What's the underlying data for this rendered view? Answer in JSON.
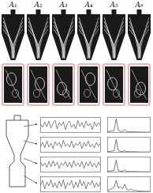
{
  "panels": {
    "labels": [
      "A₁",
      "A₂",
      "A₃",
      "A₄",
      "A₅",
      "A₆"
    ]
  },
  "chart_data": [
    {
      "type": "line",
      "color": "#333333",
      "tick_labels": false,
      "xlim": [
        0,
        29
      ],
      "ylim": [
        -1,
        1
      ],
      "x": [
        0,
        1,
        2,
        3,
        4,
        5,
        6,
        7,
        8,
        9,
        10,
        11,
        12,
        13,
        14,
        15,
        16,
        17,
        18,
        19,
        20,
        21,
        22,
        23,
        24,
        25,
        26,
        27,
        28,
        29
      ],
      "values": [
        0.1,
        -0.3,
        0.4,
        -0.2,
        0.5,
        -0.4,
        0.2,
        0.6,
        -0.5,
        0.3,
        -0.1,
        0.4,
        -0.6,
        0.2,
        0.5,
        -0.3,
        0.1,
        -0.5,
        0.6,
        -0.2,
        0.3,
        -0.4,
        0.5,
        -0.1,
        0.2,
        -0.6,
        0.4,
        -0.2,
        0.3,
        -0.1
      ]
    },
    {
      "type": "line",
      "color": "#333333",
      "tick_labels": false,
      "xlim": [
        0,
        29
      ],
      "ylim": [
        -1,
        1
      ],
      "x": [
        0,
        1,
        2,
        3,
        4,
        5,
        6,
        7,
        8,
        9,
        10,
        11,
        12,
        13,
        14,
        15,
        16,
        17,
        18,
        19,
        20,
        21,
        22,
        23,
        24,
        25,
        26,
        27,
        28,
        29
      ],
      "values": [
        -0.2,
        0.3,
        -0.4,
        0.5,
        -0.3,
        0.2,
        -0.5,
        0.4,
        -0.1,
        0.3,
        -0.4,
        0.6,
        -0.2,
        0.1,
        -0.3,
        0.5,
        -0.4,
        0.2,
        -0.1,
        0.4,
        -0.5,
        0.3,
        -0.2,
        0.5,
        -0.3,
        0.1,
        -0.4,
        0.3,
        -0.2,
        0.2
      ]
    },
    {
      "type": "line",
      "color": "#333333",
      "tick_labels": false,
      "xlim": [
        0,
        29
      ],
      "ylim": [
        -1,
        1
      ],
      "x": [
        0,
        1,
        2,
        3,
        4,
        5,
        6,
        7,
        8,
        9,
        10,
        11,
        12,
        13,
        14,
        15,
        16,
        17,
        18,
        19,
        20,
        21,
        22,
        23,
        24,
        25,
        26,
        27,
        28,
        29
      ],
      "values": [
        0.3,
        -0.2,
        0.2,
        -0.4,
        0.4,
        -0.3,
        0.5,
        -0.2,
        0.3,
        -0.5,
        0.2,
        -0.1,
        0.4,
        -0.3,
        0.3,
        -0.4,
        0.5,
        -0.2,
        0.2,
        -0.3,
        0.4,
        -0.5,
        0.3,
        -0.2,
        0.4,
        -0.3,
        0.2,
        -0.4,
        0.3,
        -0.2
      ]
    },
    {
      "type": "line",
      "color": "#333333",
      "tick_labels": false,
      "xlim": [
        0,
        29
      ],
      "ylim": [
        -1,
        1
      ],
      "x": [
        0,
        1,
        2,
        3,
        4,
        5,
        6,
        7,
        8,
        9,
        10,
        11,
        12,
        13,
        14,
        15,
        16,
        17,
        18,
        19,
        20,
        21,
        22,
        23,
        24,
        25,
        26,
        27,
        28,
        29
      ],
      "values": [
        -0.1,
        0.5,
        -0.6,
        0.3,
        -0.2,
        0.6,
        -0.4,
        0.2,
        -0.5,
        0.4,
        -0.3,
        0.6,
        -0.6,
        0.2,
        -0.1,
        0.5,
        -0.5,
        0.3,
        -0.4,
        0.6,
        -0.2,
        0.4,
        -0.6,
        0.3,
        -0.1,
        0.5,
        -0.4,
        0.2,
        -0.3,
        0.4
      ]
    },
    {
      "type": "line",
      "color": "#222222",
      "tick_labels": false,
      "xlim": [
        0,
        20
      ],
      "ylim": [
        0,
        1
      ],
      "x": [
        0,
        1,
        2,
        3,
        4,
        5,
        6,
        7,
        8,
        9,
        10,
        11,
        12,
        13,
        14,
        15,
        16,
        17,
        18,
        19,
        20
      ],
      "values": [
        0.05,
        0.08,
        0.1,
        0.12,
        0.9,
        0.15,
        0.08,
        0.06,
        0.2,
        0.07,
        0.05,
        0.04,
        0.05,
        0.03,
        0.04,
        0.03,
        0.02,
        0.03,
        0.02,
        0.02,
        0.02
      ]
    },
    {
      "type": "line",
      "color": "#222222",
      "tick_labels": false,
      "xlim": [
        0,
        20
      ],
      "ylim": [
        0,
        1
      ],
      "x": [
        0,
        1,
        2,
        3,
        4,
        5,
        6,
        7,
        8,
        9,
        10,
        11,
        12,
        13,
        14,
        15,
        16,
        17,
        18,
        19,
        20
      ],
      "values": [
        0.04,
        0.06,
        0.08,
        0.1,
        0.85,
        0.12,
        0.06,
        0.05,
        0.1,
        0.05,
        0.04,
        0.03,
        0.04,
        0.03,
        0.03,
        0.02,
        0.02,
        0.02,
        0.02,
        0.02,
        0.02
      ]
    },
    {
      "type": "line",
      "color": "#222222",
      "tick_labels": false,
      "xlim": [
        0,
        20
      ],
      "ylim": [
        0,
        1
      ],
      "x": [
        0,
        1,
        2,
        3,
        4,
        5,
        6,
        7,
        8,
        9,
        10,
        11,
        12,
        13,
        14,
        15,
        16,
        17,
        18,
        19,
        20
      ],
      "values": [
        0.05,
        0.07,
        0.09,
        0.1,
        0.8,
        0.1,
        0.06,
        0.05,
        0.15,
        0.05,
        0.04,
        0.03,
        0.04,
        0.03,
        0.03,
        0.02,
        0.02,
        0.02,
        0.02,
        0.02,
        0.02
      ]
    },
    {
      "type": "line",
      "color": "#222222",
      "tick_labels": false,
      "xlim": [
        0,
        20
      ],
      "ylim": [
        0,
        1
      ],
      "x": [
        0,
        1,
        2,
        3,
        4,
        5,
        6,
        7,
        8,
        9,
        10,
        11,
        12,
        13,
        14,
        15,
        16,
        17,
        18,
        19,
        20
      ],
      "values": [
        0.08,
        0.15,
        0.2,
        0.3,
        0.75,
        0.25,
        0.35,
        0.2,
        0.5,
        0.15,
        0.1,
        0.2,
        0.08,
        0.1,
        0.06,
        0.05,
        0.05,
        0.04,
        0.03,
        0.03,
        0.03
      ]
    }
  ]
}
